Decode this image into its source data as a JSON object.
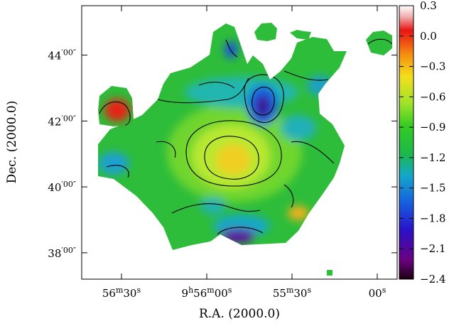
{
  "chart_data": {
    "type": "heatmap",
    "title": "",
    "xlabel": "R.A. (2000.0)",
    "ylabel": "Dec. (2000.0)",
    "x_ticks": [
      {
        "main": "56",
        "sup1": "m",
        "mid": "30",
        "sup2": "s"
      },
      {
        "main": "9",
        "sup1": "h",
        "mid": "56",
        "sup2": "m",
        "tail": "00",
        "sup3": "s"
      },
      {
        "main": "55",
        "sup1": "m",
        "mid": "30",
        "sup2": "s"
      },
      {
        "main": "00",
        "sup1": "s"
      }
    ],
    "x_tick_values_sec": [
      630,
      600,
      570,
      540
    ],
    "y_ticks": [
      {
        "main": "38",
        "sup": "′00″"
      },
      {
        "main": "40",
        "sup": "′00″"
      },
      {
        "main": "42",
        "sup": "′00″"
      },
      {
        "main": "44",
        "sup": "′00″"
      }
    ],
    "y_tick_values_arcmin": [
      38,
      40,
      42,
      44
    ],
    "xlim_sec": [
      644,
      533
    ],
    "ylim_arcmin": [
      37.2,
      45.5
    ],
    "colorbar": {
      "ticks": [
        "0.3",
        "0.0",
        "−0.3",
        "−0.6",
        "−0.9",
        "−1.2",
        "−1.5",
        "−1.8",
        "−2.1",
        "−2.4"
      ],
      "values": [
        0.3,
        0.0,
        -0.3,
        -0.6,
        -0.9,
        -1.2,
        -1.5,
        -1.8,
        -2.1,
        -2.4
      ],
      "range": [
        -2.4,
        0.3
      ],
      "colormap": [
        "#1a0010",
        "#6b0080",
        "#2a12c8",
        "#1560e0",
        "#13a8c8",
        "#1db84a",
        "#33cc22",
        "#9ee22a",
        "#f4e01c",
        "#f59010",
        "#e81414",
        "#f0b0b0",
        "#ffffff"
      ]
    },
    "features": [
      {
        "label": "central maximum",
        "ra_sec": 597,
        "dec_arcmin": 40.9,
        "value": -0.35
      },
      {
        "label": "minimum",
        "ra_sec": 583,
        "dec_arcmin": 42.5,
        "value": -2.4
      },
      {
        "label": "western island maximum",
        "ra_sec": 632,
        "dec_arcmin": 42.3,
        "value": 0.05
      },
      {
        "label": "southern minimum",
        "ra_sec": 587,
        "dec_arcmin": 38.6,
        "value": -2.0
      }
    ]
  }
}
